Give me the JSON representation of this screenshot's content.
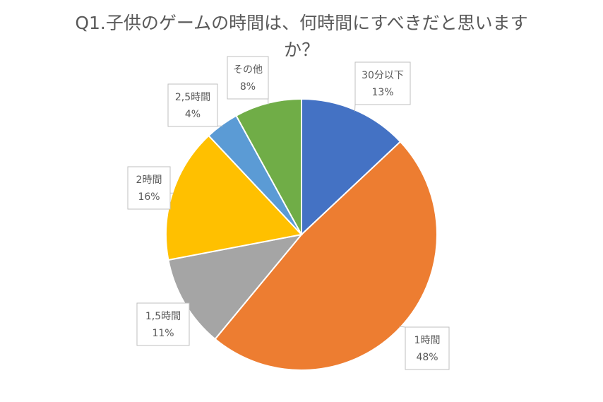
{
  "chart_data": {
    "type": "pie",
    "title_line1": "Q1.子供のゲームの時間は、何時間にすべきだと思います",
    "title_line2": "か？",
    "slices": [
      {
        "label": "30分以下",
        "value": 13,
        "value_label": "13%",
        "color": "#4472C4"
      },
      {
        "label": "1時間",
        "value": 48,
        "value_label": "48%",
        "color": "#ED7D31"
      },
      {
        "label": "1,5時間",
        "value": 11,
        "value_label": "11%",
        "color": "#A5A5A5"
      },
      {
        "label": "2時間",
        "value": 16,
        "value_label": "16%",
        "color": "#FFC000"
      },
      {
        "label": "2,5時間",
        "value": 4,
        "value_label": "4%",
        "color": "#5B9BD5"
      },
      {
        "label": "その他",
        "value": 8,
        "value_label": "8%",
        "color": "#70AD47"
      }
    ],
    "legend": "none"
  }
}
